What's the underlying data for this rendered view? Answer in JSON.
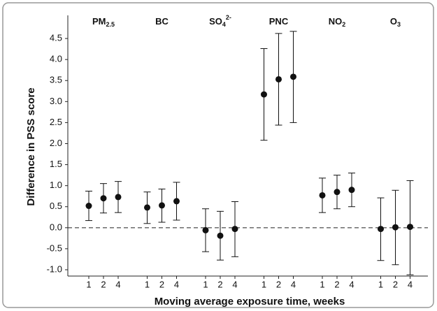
{
  "chart_data": {
    "type": "errorbar",
    "y_label": "Difference in PSS score",
    "x_label": "Moving average exposure time, weeks",
    "categories": [
      "1",
      "2",
      "4"
    ],
    "groups": [
      {
        "name": "PM",
        "sub": "2.5",
        "values": [
          0.52,
          0.7,
          0.73
        ],
        "lower": [
          0.17,
          0.35,
          0.36
        ],
        "upper": [
          0.87,
          1.05,
          1.1
        ]
      },
      {
        "name": "BC",
        "values": [
          0.48,
          0.53,
          0.63
        ],
        "lower": [
          0.1,
          0.13,
          0.18
        ],
        "upper": [
          0.85,
          0.92,
          1.08
        ]
      },
      {
        "name": "SO",
        "sub": "4",
        "sup": "2-",
        "values": [
          -0.06,
          -0.19,
          -0.03
        ],
        "lower": [
          -0.57,
          -0.77,
          -0.69
        ],
        "upper": [
          0.45,
          0.39,
          0.62
        ]
      },
      {
        "name": "PNC",
        "values": [
          3.17,
          3.53,
          3.59
        ],
        "lower": [
          2.08,
          2.44,
          2.5
        ],
        "upper": [
          4.26,
          4.62,
          4.67
        ]
      },
      {
        "name": "NO",
        "sub": "2",
        "values": [
          0.77,
          0.85,
          0.9
        ],
        "lower": [
          0.36,
          0.45,
          0.5
        ],
        "upper": [
          1.18,
          1.25,
          1.3
        ]
      },
      {
        "name": "O",
        "sub": "3",
        "values": [
          -0.03,
          0.01,
          0.02
        ],
        "lower": [
          -0.78,
          -0.88,
          -1.12
        ],
        "upper": [
          0.71,
          0.89,
          1.12
        ]
      }
    ],
    "color": "#111111",
    "reference_line": 0,
    "ylim": [
      -1.15,
      5.05
    ],
    "yticks": [
      {
        "value": -1,
        "label": "-1.0"
      },
      -0.5,
      {
        "value": 0,
        "label": "0.0"
      },
      0.5,
      {
        "value": 1,
        "label": "1.0"
      },
      1.5,
      {
        "value": 2,
        "label": "2.0"
      },
      2.5,
      {
        "value": 3,
        "label": "3.0"
      },
      3.5,
      {
        "value": 4,
        "label": "4.0"
      },
      4.5
    ]
  }
}
